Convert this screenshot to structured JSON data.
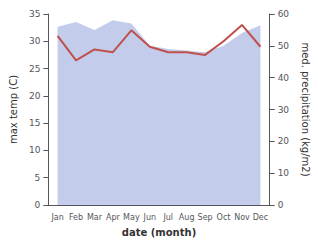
{
  "chart_data": {
    "type": "line",
    "categories": [
      "Jan",
      "Feb",
      "Mar",
      "Apr",
      "May",
      "Jun",
      "Jul",
      "Aug",
      "Sep",
      "Oct",
      "Nov",
      "Dec"
    ],
    "series": [
      {
        "type": "area",
        "color": "#b8c4e8",
        "values": [
          56,
          57.5,
          55,
          58,
          57,
          50,
          49,
          48.5,
          48,
          50,
          54,
          56.5
        ],
        "axis": "y2"
      },
      {
        "type": "line",
        "color": "#c0504d",
        "values": [
          31,
          26.5,
          28.5,
          28,
          32,
          29,
          28,
          28,
          27.5,
          30,
          33,
          29
        ]
      }
    ],
    "xlabel": "date (month)",
    "ylabel": "max temp (C)",
    "y2label": "med. precipitation (kg/m2)",
    "ylim": [
      0,
      35
    ],
    "yticks": [
      0,
      5,
      10,
      15,
      20,
      25,
      30,
      35
    ],
    "y2lim": [
      0,
      60
    ],
    "y2ticks": [
      0,
      10,
      20,
      30,
      40,
      50,
      60
    ],
    "grid": false
  }
}
